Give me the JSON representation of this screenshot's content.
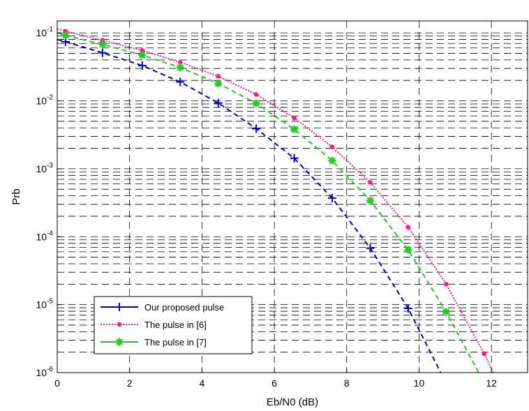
{
  "chart_data": {
    "type": "line",
    "title": "",
    "xlabel": "Eb/N0 (dB)",
    "ylabel": "Prb",
    "xlim": [
      0,
      13
    ],
    "ylim": [
      1e-06,
      0.15
    ],
    "yscale": "log",
    "grid": true,
    "legend_position": "bottom-left",
    "x_ticks": [
      "0",
      "2",
      "4",
      "6",
      "8",
      "10",
      "12"
    ],
    "y_ticks": [
      {
        "base": "10",
        "exp": "-1",
        "value": 0.1
      },
      {
        "base": "10",
        "exp": "-2",
        "value": 0.01
      },
      {
        "base": "10",
        "exp": "-3",
        "value": 0.001
      },
      {
        "base": "10",
        "exp": "-4",
        "value": 0.0001
      },
      {
        "base": "10",
        "exp": "-5",
        "value": 1e-05
      },
      {
        "base": "10",
        "exp": "-6",
        "value": 1e-06
      }
    ],
    "series": [
      {
        "name": "Our proposed pulse",
        "color": "#0000cc",
        "marker": "plus",
        "line_style": "dashed",
        "x": [
          0,
          0.23,
          1.25,
          2.35,
          3.4,
          4.45,
          5.5,
          6.55,
          7.6,
          8.65,
          9.7,
          10.6
        ],
        "y": [
          0.08,
          0.074,
          0.051,
          0.033,
          0.019,
          0.0093,
          0.0039,
          0.00143,
          0.00037,
          6.8e-05,
          8.8e-06,
          1e-06
        ],
        "marker_x": [
          0.23,
          1.25,
          2.35,
          3.4,
          4.45,
          5.5,
          6.55,
          7.6,
          8.65,
          9.7
        ]
      },
      {
        "name": "The pulse in [6]",
        "color": "#ff1a8c",
        "marker": "dot",
        "line_style": "dotted",
        "x": [
          0,
          0.23,
          1.25,
          2.35,
          3.4,
          4.45,
          5.5,
          6.55,
          7.6,
          8.65,
          9.7,
          10.75,
          11.8,
          12.05
        ],
        "y": [
          0.115,
          0.106,
          0.078,
          0.055,
          0.037,
          0.023,
          0.0124,
          0.0056,
          0.0021,
          0.00063,
          0.000138,
          2e-05,
          1.9e-06,
          1e-06
        ],
        "marker_x": [
          0.23,
          1.25,
          2.35,
          3.4,
          4.45,
          5.5,
          6.55,
          7.6,
          8.65,
          9.7,
          10.75,
          11.8
        ]
      },
      {
        "name": "The pulse in [7]",
        "color": "#22cc22",
        "marker": "star",
        "line_style": "dashed",
        "x": [
          0,
          0.23,
          1.25,
          2.35,
          3.4,
          4.45,
          5.5,
          6.55,
          7.6,
          8.65,
          9.7,
          10.75,
          11.65
        ],
        "y": [
          0.1,
          0.092,
          0.068,
          0.047,
          0.031,
          0.018,
          0.0092,
          0.0038,
          0.00132,
          0.00034,
          6.4e-05,
          7.8e-06,
          1e-06
        ],
        "marker_x": [
          0.23,
          1.25,
          2.35,
          3.4,
          4.45,
          5.5,
          6.55,
          7.6,
          8.65,
          9.7,
          10.75
        ]
      }
    ]
  }
}
